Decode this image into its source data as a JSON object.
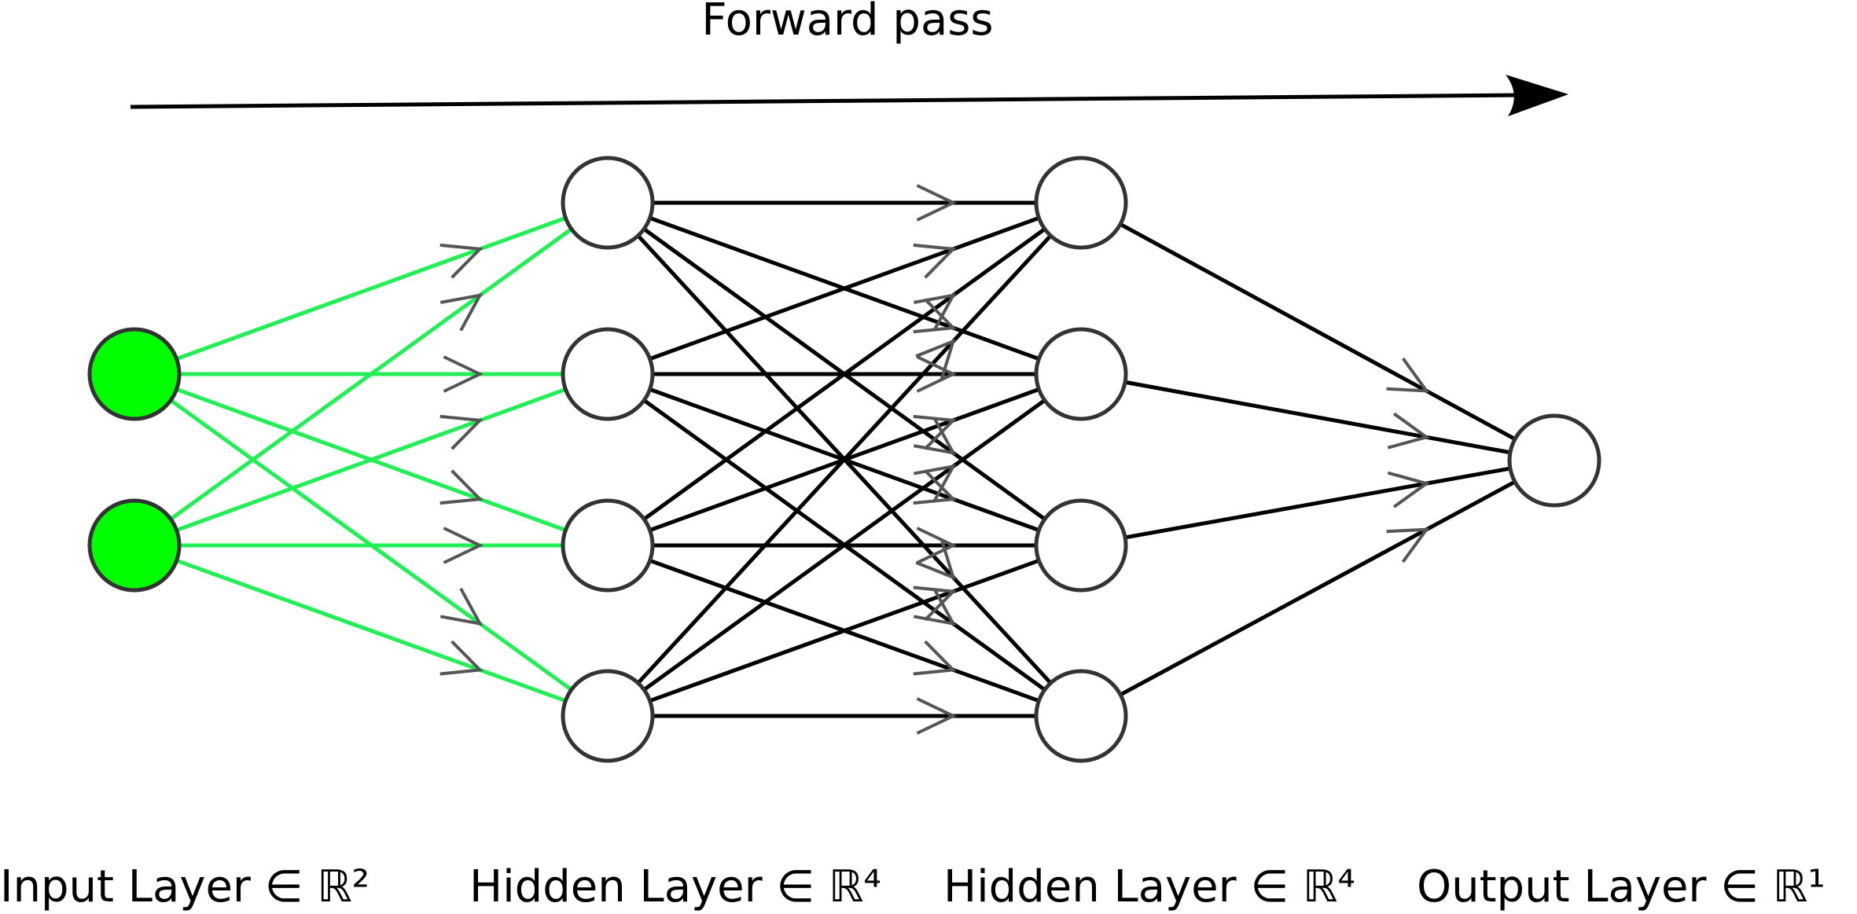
{
  "title": "Forward pass",
  "colors": {
    "input_node_fill": "#00ff00",
    "node_fill": "#ffffff",
    "node_stroke": "#333333",
    "input_edge": "#22ee55",
    "hidden_edge": "#000000",
    "edge_arrowhead": "#555555",
    "forward_arrow": "#000000"
  },
  "layers": [
    {
      "label": "Input Layer ∈ ℝ²",
      "size": 2
    },
    {
      "label": "Hidden Layer ∈ ℝ⁴",
      "size": 4
    },
    {
      "label": "Hidden Layer ∈ ℝ⁴",
      "size": 4
    },
    {
      "label": "Output Layer ∈ ℝ¹",
      "size": 1
    }
  ]
}
